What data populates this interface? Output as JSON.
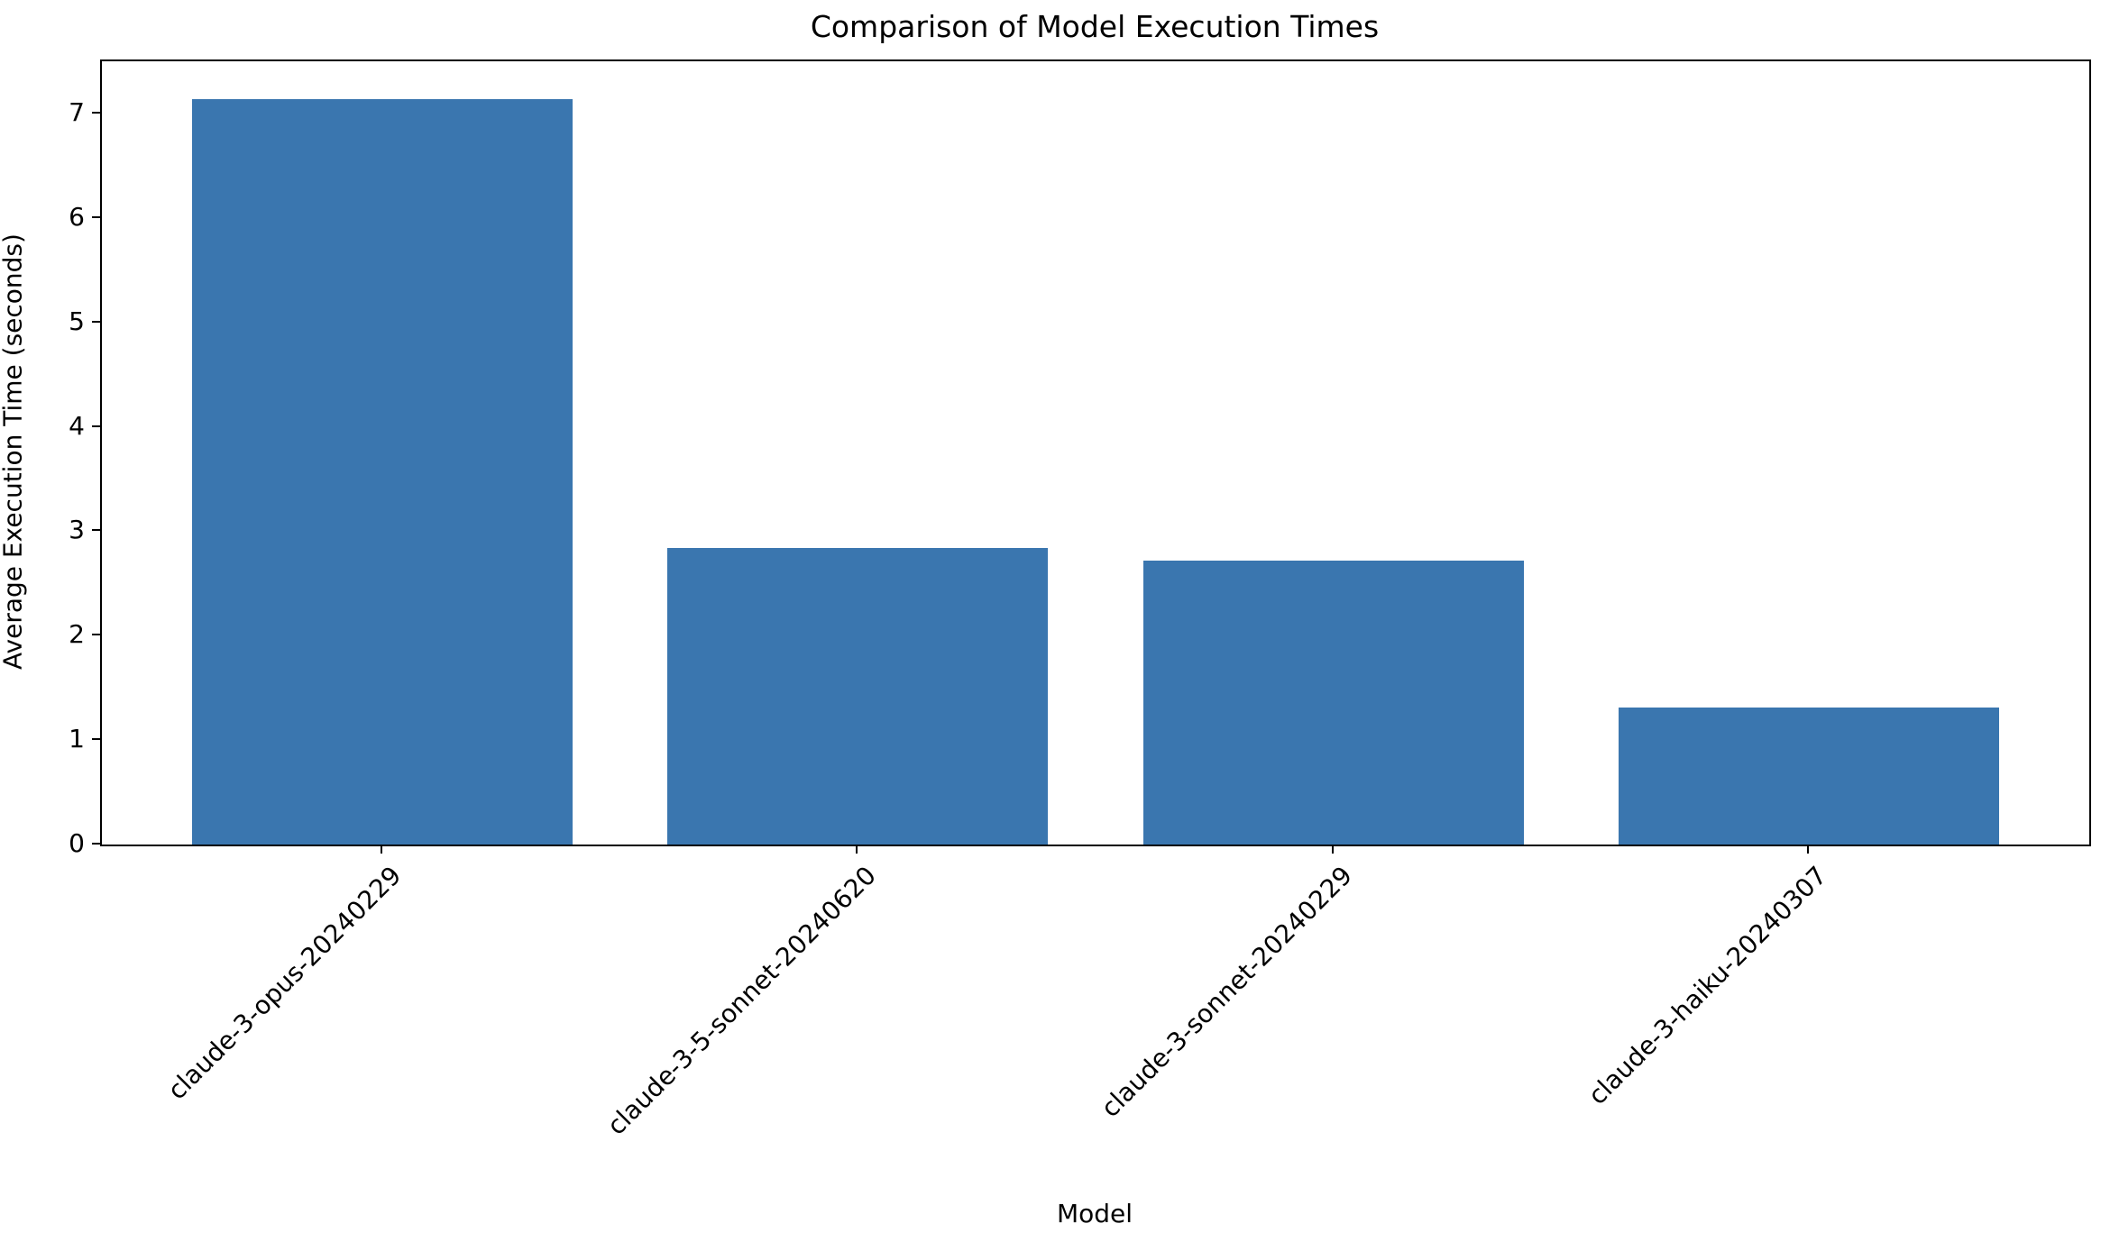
{
  "chart_data": {
    "type": "bar",
    "title": "Comparison of Model Execution Times",
    "xlabel": "Model",
    "ylabel": "Average Execution Time (seconds)",
    "categories": [
      "claude-3-opus-20240229",
      "claude-3-5-sonnet-20240620",
      "claude-3-sonnet-20240229",
      "claude-3-haiku-20240307"
    ],
    "values": [
      7.14,
      2.84,
      2.72,
      1.31
    ],
    "yticks": [
      0,
      1,
      2,
      3,
      4,
      5,
      6,
      7
    ],
    "ylim": [
      0,
      7.5
    ],
    "bar_color": "#3A76AF",
    "axis_color": "#000000",
    "grid": "off",
    "legend": "none"
  }
}
